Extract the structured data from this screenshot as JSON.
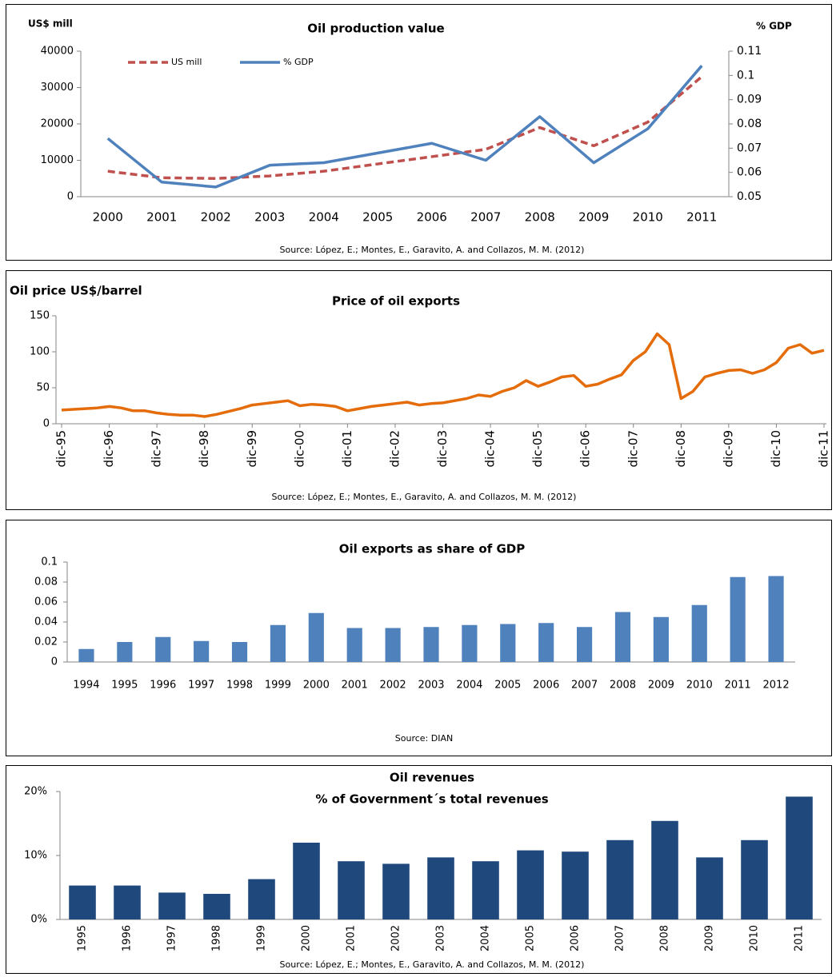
{
  "chart_data": [
    {
      "type": "line",
      "title": "Oil production  value",
      "y_label": "US$ mill",
      "y2_label": "% GDP",
      "source": "Source: López, E.; Montes, E., Garavito, A. and Collazos, M. M. (2012)",
      "categories": [
        "2000",
        "2001",
        "2002",
        "2003",
        "2004",
        "2005",
        "2006",
        "2007",
        "2008",
        "2009",
        "2010",
        "2011"
      ],
      "series": [
        {
          "name": "US mill",
          "color": "#c0504d",
          "line_style": "dashed",
          "values": [
            7000,
            5200,
            5000,
            5700,
            7000,
            9000,
            11000,
            13000,
            19000,
            14000,
            20500,
            33000
          ]
        },
        {
          "name": "% GDP",
          "color": "#4f81bd",
          "line_style": "solid",
          "axis": "y2",
          "values": [
            0.074,
            0.056,
            0.054,
            0.063,
            0.064,
            0.068,
            0.072,
            0.065,
            0.083,
            0.064,
            0.078,
            0.104
          ]
        }
      ],
      "ylim": [
        0,
        40000
      ],
      "yticks": [
        0,
        10000,
        20000,
        30000,
        40000
      ],
      "y2lim": [
        0.05,
        0.11
      ],
      "y2ticks": [
        0.05,
        0.06,
        0.07,
        0.08,
        0.09,
        0.1,
        0.11
      ],
      "grid": false
    },
    {
      "type": "line",
      "title": "Price of oil exports",
      "y_label": "Oil price US$/barrel",
      "source": "Source: López, E.; Montes, E., Garavito, A. and Collazos, M. M. (2012)",
      "categories": [
        "dic-95",
        null,
        null,
        null,
        "dic-96",
        null,
        null,
        null,
        "dic-97",
        null,
        null,
        null,
        "dic-98",
        null,
        null,
        null,
        "dic-99",
        null,
        null,
        null,
        "dic-00",
        null,
        null,
        null,
        "dic-01",
        null,
        null,
        null,
        "dic-02",
        null,
        null,
        null,
        "dic-03",
        null,
        null,
        null,
        "dic-04",
        null,
        null,
        null,
        "dic-05",
        null,
        null,
        null,
        "dic-06",
        null,
        null,
        null,
        "dic-07",
        null,
        null,
        null,
        "dic-08",
        null,
        null,
        null,
        "dic-09",
        null,
        null,
        null,
        "dic-10",
        null,
        null,
        null,
        "dic-11"
      ],
      "color": "#e46c0a",
      "values": [
        19,
        20,
        21,
        22,
        24,
        22,
        18,
        18,
        15,
        13,
        12,
        12,
        10,
        13,
        17,
        21,
        26,
        28,
        30,
        32,
        25,
        27,
        26,
        24,
        18,
        21,
        24,
        26,
        28,
        30,
        26,
        28,
        29,
        32,
        35,
        40,
        38,
        45,
        50,
        60,
        52,
        58,
        65,
        67,
        52,
        55,
        62,
        68,
        88,
        100,
        125,
        110,
        35,
        45,
        65,
        70,
        74,
        75,
        70,
        75,
        85,
        105,
        110,
        98,
        102
      ],
      "ylim": [
        0,
        150
      ],
      "yticks": [
        0,
        50,
        100,
        150
      ],
      "grid": false
    },
    {
      "type": "bar",
      "title": "Oil exports as share of GDP",
      "source": "Source: DIAN",
      "categories": [
        "1994",
        "1995",
        "1996",
        "1997",
        "1998",
        "1999",
        "2000",
        "2001",
        "2002",
        "2003",
        "2004",
        "2005",
        "2006",
        "2007",
        "2008",
        "2009",
        "2010",
        "2011",
        "2012"
      ],
      "color": "#4f81bd",
      "values": [
        0.013,
        0.02,
        0.025,
        0.021,
        0.02,
        0.037,
        0.049,
        0.034,
        0.034,
        0.035,
        0.037,
        0.038,
        0.039,
        0.035,
        0.05,
        0.045,
        0.057,
        0.085,
        0.086
      ],
      "ylim": [
        0,
        0.1
      ],
      "yticks": [
        0,
        0.02,
        0.04,
        0.06,
        0.08,
        0.1
      ],
      "grid": false
    },
    {
      "type": "bar",
      "title": "Oil  revenues",
      "subtitle": "% of Government´s total revenues",
      "source": "Source: López, E.; Montes, E., Garavito, A. and Collazos, M. M. (2012)",
      "categories": [
        "1995",
        "1996",
        "1997",
        "1998",
        "1999",
        "2000",
        "2001",
        "2002",
        "2003",
        "2004",
        "2005",
        "2006",
        "2007",
        "2008",
        "2009",
        "2010",
        "2011"
      ],
      "color": "#1f497d",
      "values": [
        5.3,
        5.3,
        4.2,
        4.0,
        6.3,
        12.0,
        9.1,
        8.7,
        9.7,
        9.1,
        10.8,
        10.6,
        12.4,
        15.4,
        9.7,
        12.4,
        19.2
      ],
      "ylim": [
        0,
        20
      ],
      "yticks": [
        {
          "value": 0,
          "label": "0%"
        },
        {
          "value": 10,
          "label": "10%"
        },
        {
          "value": 20,
          "label": "20%"
        }
      ],
      "grid": false
    }
  ]
}
